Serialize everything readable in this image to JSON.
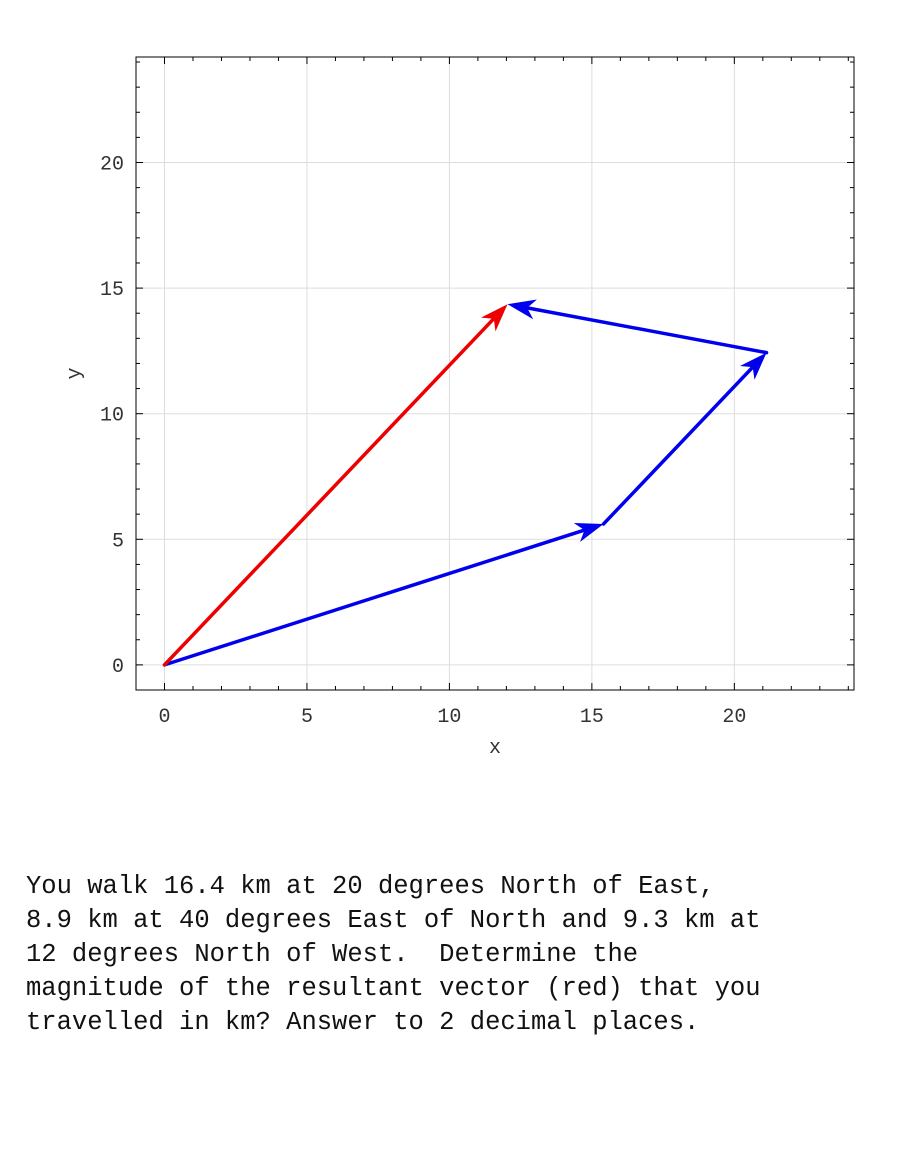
{
  "chart_data": {
    "type": "vector-diagram",
    "xlabel": "x",
    "ylabel": "y",
    "xlim": [
      -1,
      24.2
    ],
    "ylim": [
      -1,
      24.2
    ],
    "xticks": [
      0,
      5,
      10,
      15,
      20
    ],
    "yticks": [
      0,
      5,
      10,
      15,
      20
    ],
    "grid": true,
    "colors": {
      "component": "#0000ee",
      "resultant": "#ee0000",
      "grid": "#dddddd",
      "frame": "#000000"
    },
    "vectors": [
      {
        "role": "component",
        "from": [
          0,
          0
        ],
        "to": [
          15.41,
          5.61
        ]
      },
      {
        "role": "component",
        "from": [
          15.41,
          5.61
        ],
        "to": [
          21.13,
          12.43
        ]
      },
      {
        "role": "component",
        "from": [
          21.13,
          12.43
        ],
        "to": [
          12.04,
          14.36
        ]
      },
      {
        "role": "resultant",
        "from": [
          0,
          0
        ],
        "to": [
          12.04,
          14.36
        ]
      }
    ]
  },
  "question": {
    "lines": [
      "You walk 16.4 km at 20 degrees North of East,",
      "8.9 km at 40 degrees East of North and 9.3 km at",
      "12 degrees North of West.  Determine the",
      "magnitude of the resultant vector (red) that you",
      "travelled in km? Answer to 2 decimal places."
    ]
  }
}
